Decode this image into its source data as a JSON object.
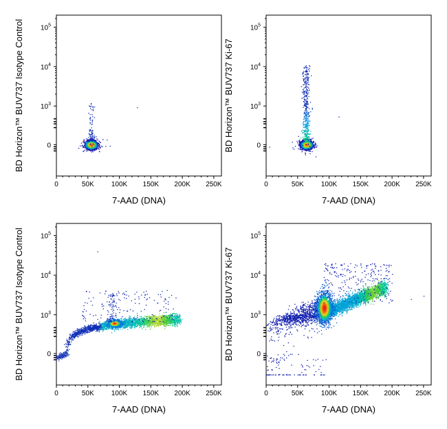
{
  "chart_data": [
    {
      "type": "scatter",
      "panel": "top-left",
      "xlabel": "7-AAD (DNA)",
      "ylabel": "BD Horizon™ BUV737 Isotype Control",
      "x_ticks": [
        "0",
        "50K",
        "100K",
        "150K",
        "200K",
        "250K"
      ],
      "y_ticks": [
        "0",
        "10^3",
        "10^4",
        "10^5"
      ],
      "xlim": [
        0,
        262144
      ],
      "y_scale": "biexponential",
      "clusters": [
        {
          "x_center": 55000,
          "y_center": 0,
          "x_spread": 6000,
          "y_spread": 1,
          "note": "G0/G1 peak, tight"
        }
      ],
      "outliers": [
        [
          60000,
          900
        ],
        [
          58000,
          600
        ],
        [
          128000,
          800
        ]
      ]
    },
    {
      "type": "scatter",
      "panel": "top-right",
      "xlabel": "7-AAD (DNA)",
      "ylabel": "BD Horizon™ BUV737 Ki-67",
      "x_ticks": [
        "0",
        "50K",
        "100K",
        "150K",
        "200K",
        "250K"
      ],
      "y_ticks": [
        "0",
        "10^3",
        "10^4",
        "10^5"
      ],
      "xlim": [
        0,
        262144
      ],
      "y_scale": "biexponential",
      "clusters": [
        {
          "x_center": 64000,
          "y_center": 0,
          "x_spread": 6000,
          "y_spread": 1,
          "note": "G0/G1 peak with upward streak to ~10^4"
        }
      ],
      "outliers": [
        [
          63000,
          10000
        ],
        [
          5000,
          -20
        ],
        [
          115000,
          150
        ]
      ]
    },
    {
      "type": "scatter",
      "panel": "bottom-left",
      "xlabel": "7-AAD (DNA)",
      "ylabel": "BD Horizon™ BUV737 Isotype Control",
      "x_ticks": [
        "0",
        "50K",
        "100K",
        "150K",
        "200K",
        "250K"
      ],
      "y_ticks": [
        "0",
        "10^3",
        "10^4",
        "10^5"
      ],
      "xlim": [
        0,
        262144
      ],
      "y_scale": "biexponential",
      "clusters": [
        {
          "x_center": 92000,
          "y_center": 250,
          "x_spread": 8000,
          "y_spread": 1,
          "note": "G1 peak"
        },
        {
          "x_from": 0,
          "x_to": 200000,
          "note": "diagonal band rising from ~0 to ~400"
        }
      ],
      "outliers": [
        [
          65000,
          40000
        ],
        [
          110000,
          4000
        ],
        [
          160000,
          2000
        ]
      ]
    },
    {
      "type": "scatter",
      "panel": "bottom-right",
      "xlabel": "7-AAD (DNA)",
      "ylabel": "BD Horizon™ BUV737 Ki-67",
      "x_ticks": [
        "0",
        "50K",
        "100K",
        "150K",
        "200K",
        "250K"
      ],
      "y_ticks": [
        "0",
        "10^3",
        "10^4",
        "10^5"
      ],
      "xlim": [
        0,
        262144
      ],
      "y_scale": "biexponential",
      "clusters": [
        {
          "x_center": 92000,
          "y_center": 1500,
          "x_spread": 6000,
          "y_spread": 2,
          "note": "Ki-67+ G1 peak, vertically elongated"
        },
        {
          "x_from": 95000,
          "x_to": 200000,
          "note": "S/G2/M band rising to ~5000"
        },
        {
          "x_from": 0,
          "x_to": 90000,
          "note": "sparse diffuse cloud"
        }
      ],
      "outliers": [
        [
          250000,
          3000
        ],
        [
          230000,
          2500
        ],
        [
          10000,
          10
        ]
      ]
    }
  ]
}
